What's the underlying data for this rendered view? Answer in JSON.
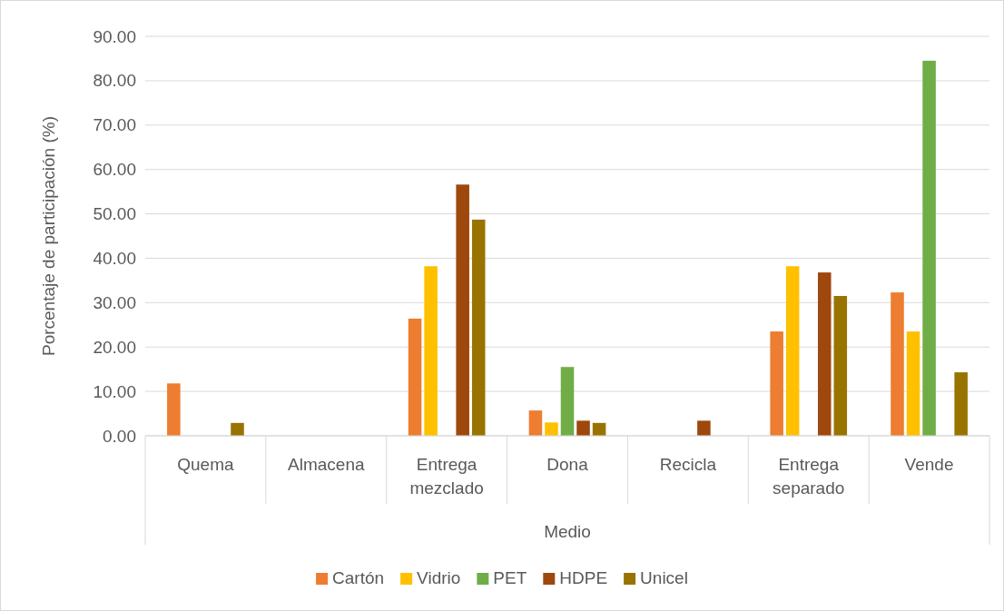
{
  "chart_data": {
    "type": "bar",
    "xlabel": "Medio",
    "ylabel": "Porcentaje de participación (%)",
    "categories": [
      "Quema",
      "Almacena",
      "Entrega mezclado",
      "Dona",
      "Recicla",
      "Entrega separado",
      "Vende"
    ],
    "series": [
      {
        "name": "Cartón",
        "color": "#ed7d31",
        "values": [
          11.8,
          0,
          26.4,
          5.7,
          0,
          23.5,
          32.3
        ]
      },
      {
        "name": "Vidrio",
        "color": "#ffc000",
        "values": [
          0,
          0,
          38.2,
          3.0,
          0,
          38.2,
          23.5
        ]
      },
      {
        "name": "PET",
        "color": "#70ad47",
        "values": [
          0,
          0,
          0,
          15.5,
          0,
          0,
          84.5
        ]
      },
      {
        "name": "HDPE",
        "color": "#9e480e",
        "values": [
          0,
          0,
          56.6,
          3.4,
          3.4,
          36.8,
          0
        ]
      },
      {
        "name": "Unicel",
        "color": "#997300",
        "values": [
          2.9,
          0,
          48.7,
          2.9,
          0,
          31.5,
          14.3
        ]
      }
    ],
    "ylim": [
      0,
      90
    ],
    "yticks": [
      {
        "value": 0,
        "label": "0.00"
      },
      {
        "value": 10,
        "label": "10.00"
      },
      {
        "value": 20,
        "label": "20.00"
      },
      {
        "value": 30,
        "label": "30.00"
      },
      {
        "value": 40,
        "label": "40.00"
      },
      {
        "value": 50,
        "label": "50.00"
      },
      {
        "value": 60,
        "label": "60.00"
      },
      {
        "value": 70,
        "label": "70.00"
      },
      {
        "value": 80,
        "label": "80.00"
      },
      {
        "value": 90,
        "label": "90.00"
      }
    ],
    "grid": "y",
    "legend": "bottom"
  }
}
